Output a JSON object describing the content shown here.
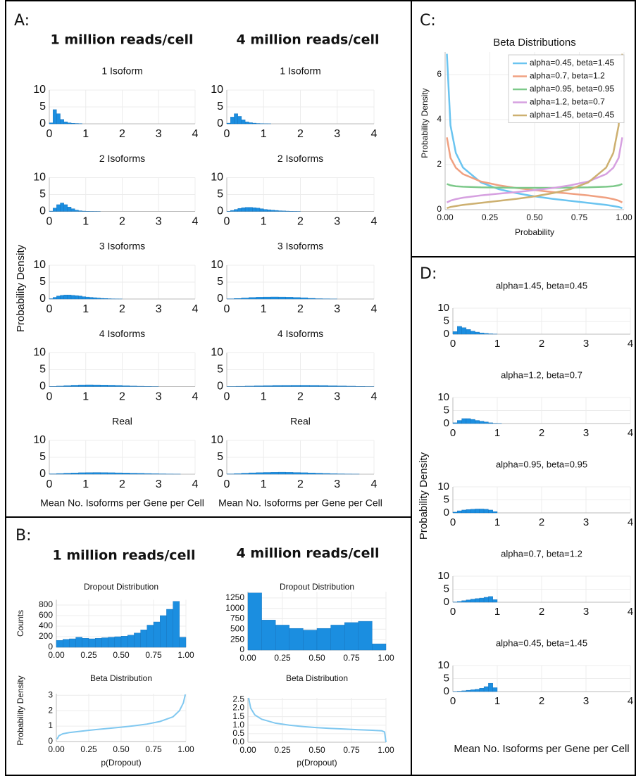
{
  "panels": {
    "A": {
      "label": "A:",
      "columns": [
        "1 million reads/cell",
        "4 million reads/cell"
      ],
      "ylabel": "Probability Density"
    },
    "B": {
      "label": "B:",
      "columns": [
        "1 million reads/cell",
        "4 million reads/cell"
      ]
    },
    "C": {
      "label": "C:"
    },
    "D": {
      "label": "D:",
      "ylabel": "Probability Density"
    }
  },
  "chart_data": [
    {
      "type": "histogram",
      "title": "1 Isoform",
      "color": "#1b8ee0",
      "grid": true,
      "xlim": [
        0,
        4
      ],
      "xticks": [
        0,
        1,
        2,
        3,
        4
      ],
      "ylim": [
        0,
        10
      ],
      "yticks": [
        0,
        5,
        10
      ],
      "bins": [
        0,
        0.1,
        0.2,
        0.3,
        0.4,
        0.5,
        0.6,
        0.7,
        0.8,
        0.9
      ],
      "values": [
        0.3,
        4.2,
        3,
        1.3,
        0.6,
        0.3,
        0.15,
        0.1,
        0.05
      ]
    },
    {
      "type": "histogram",
      "title": "1 Isoform",
      "color": "#1b8ee0",
      "grid": true,
      "xlim": [
        0,
        4
      ],
      "xticks": [
        0,
        1,
        2,
        3,
        4
      ],
      "ylim": [
        0,
        10
      ],
      "yticks": [
        0,
        5,
        10
      ],
      "bins": [
        0,
        0.1,
        0.2,
        0.3,
        0.4,
        0.5,
        0.6,
        0.7,
        0.8,
        0.9,
        1.0,
        1.1,
        1.2
      ],
      "values": [
        0.2,
        2,
        3,
        2.2,
        1.2,
        0.6,
        0.35,
        0.2,
        0.1,
        0.05,
        0.03,
        0.02
      ]
    },
    {
      "type": "histogram",
      "title": "2 Isoforms",
      "color": "#1b8ee0",
      "grid": true,
      "xlim": [
        0,
        4
      ],
      "xticks": [
        0,
        1,
        2,
        3,
        4
      ],
      "ylim": [
        0,
        10
      ],
      "yticks": [
        0,
        5,
        10
      ],
      "bins": [
        0,
        0.1,
        0.2,
        0.3,
        0.4,
        0.5,
        0.6,
        0.7,
        0.8,
        0.9,
        1.0,
        1.1,
        1.2,
        1.3,
        1.4
      ],
      "values": [
        0.1,
        1,
        2,
        2.5,
        2,
        1.3,
        0.8,
        0.4,
        0.2,
        0.1,
        0.05,
        0.03,
        0.02,
        0.01
      ]
    },
    {
      "type": "histogram",
      "title": "2 Isoforms",
      "color": "#1b8ee0",
      "grid": true,
      "xlim": [
        0,
        4
      ],
      "xticks": [
        0,
        1,
        2,
        3,
        4
      ],
      "ylim": [
        0,
        10
      ],
      "yticks": [
        0,
        5,
        10
      ],
      "bins": [
        0,
        0.1,
        0.2,
        0.3,
        0.4,
        0.5,
        0.6,
        0.7,
        0.8,
        0.9,
        1.0,
        1.1,
        1.2,
        1.3,
        1.4,
        1.5,
        1.6,
        1.7,
        1.8,
        1.9,
        2.0
      ],
      "values": [
        0.05,
        0.3,
        0.6,
        0.9,
        1.1,
        1.2,
        1.2,
        1.1,
        1,
        0.8,
        0.6,
        0.5,
        0.4,
        0.3,
        0.2,
        0.15,
        0.1,
        0.06,
        0.04,
        0.02
      ]
    },
    {
      "type": "histogram",
      "title": "3 Isoforms",
      "color": "#1b8ee0",
      "grid": true,
      "xlim": [
        0,
        4
      ],
      "xticks": [
        0,
        1,
        2,
        3,
        4
      ],
      "ylim": [
        0,
        10
      ],
      "yticks": [
        0,
        5,
        10
      ],
      "bins": [
        0,
        0.1,
        0.2,
        0.3,
        0.4,
        0.5,
        0.6,
        0.7,
        0.8,
        0.9,
        1.0,
        1.1,
        1.2,
        1.3,
        1.4,
        1.5,
        1.6,
        1.7,
        1.8,
        1.9,
        2.0
      ],
      "values": [
        0.1,
        0.5,
        0.9,
        1.1,
        1.2,
        1.2,
        1.1,
        1,
        0.9,
        0.7,
        0.6,
        0.5,
        0.4,
        0.3,
        0.2,
        0.15,
        0.1,
        0.05,
        0.03,
        0.02
      ]
    },
    {
      "type": "histogram",
      "title": "3 Isoforms",
      "color": "#1b8ee0",
      "grid": true,
      "xlim": [
        0,
        4
      ],
      "xticks": [
        0,
        1,
        2,
        3,
        4
      ],
      "ylim": [
        0,
        10
      ],
      "yticks": [
        0,
        5,
        10
      ],
      "bins": [
        0,
        0.2,
        0.4,
        0.6,
        0.8,
        1.0,
        1.2,
        1.4,
        1.6,
        1.8,
        2.0,
        2.2,
        2.4,
        2.6,
        2.8,
        3.0
      ],
      "values": [
        0.05,
        0.15,
        0.3,
        0.45,
        0.55,
        0.6,
        0.62,
        0.6,
        0.55,
        0.45,
        0.35,
        0.2,
        0.1,
        0.05,
        0.02
      ]
    },
    {
      "type": "histogram",
      "title": "4 Isoforms",
      "color": "#1b8ee0",
      "grid": true,
      "xlim": [
        0,
        4
      ],
      "xticks": [
        0,
        1,
        2,
        3,
        4
      ],
      "ylim": [
        0,
        10
      ],
      "yticks": [
        0,
        5,
        10
      ],
      "bins": [
        0,
        0.2,
        0.4,
        0.6,
        0.8,
        1.0,
        1.2,
        1.4,
        1.6,
        1.8,
        2.0,
        2.2,
        2.4,
        2.6,
        2.8,
        3.0
      ],
      "values": [
        0.05,
        0.15,
        0.3,
        0.42,
        0.5,
        0.52,
        0.5,
        0.47,
        0.42,
        0.35,
        0.27,
        0.18,
        0.1,
        0.05,
        0.02
      ]
    },
    {
      "type": "histogram",
      "title": "4 Isoforms",
      "color": "#1b8ee0",
      "grid": true,
      "xlim": [
        0,
        4
      ],
      "xticks": [
        0,
        1,
        2,
        3,
        4
      ],
      "ylim": [
        0,
        10
      ],
      "yticks": [
        0,
        5,
        10
      ],
      "bins": [
        0,
        0.25,
        0.5,
        0.75,
        1.0,
        1.25,
        1.5,
        1.75,
        2.0,
        2.25,
        2.5,
        2.75,
        3.0,
        3.25,
        3.5,
        3.75,
        4.0
      ],
      "values": [
        0.03,
        0.08,
        0.15,
        0.23,
        0.3,
        0.35,
        0.38,
        0.4,
        0.4,
        0.38,
        0.33,
        0.27,
        0.2,
        0.12,
        0.06,
        0.02
      ]
    },
    {
      "type": "histogram",
      "title": "Real",
      "xlabel": "Mean No. Isoforms per Gene per Cell",
      "color": "#1b8ee0",
      "grid": true,
      "xlim": [
        0,
        4
      ],
      "xticks": [
        0,
        1,
        2,
        3,
        4
      ],
      "ylim": [
        0,
        10
      ],
      "yticks": [
        0,
        5,
        10
      ],
      "bins": [
        0,
        0.2,
        0.4,
        0.6,
        0.8,
        1.0,
        1.2,
        1.4,
        1.6,
        1.8,
        2.0,
        2.2,
        2.4,
        2.6,
        2.8,
        3.0,
        3.2,
        3.4,
        3.6
      ],
      "values": [
        0.1,
        0.2,
        0.3,
        0.38,
        0.44,
        0.48,
        0.5,
        0.48,
        0.44,
        0.4,
        0.35,
        0.3,
        0.25,
        0.2,
        0.14,
        0.1,
        0.06,
        0.03
      ]
    },
    {
      "type": "histogram",
      "title": "Real",
      "xlabel": "Mean No. Isoforms per Gene per Cell",
      "color": "#1b8ee0",
      "grid": true,
      "xlim": [
        0,
        4
      ],
      "xticks": [
        0,
        1,
        2,
        3,
        4
      ],
      "ylim": [
        0,
        10
      ],
      "yticks": [
        0,
        5,
        10
      ],
      "bins": [
        0,
        0.2,
        0.4,
        0.6,
        0.8,
        1.0,
        1.2,
        1.4,
        1.6,
        1.8,
        2.0,
        2.2,
        2.4,
        2.6,
        2.8,
        3.0,
        3.2,
        3.4,
        3.6
      ],
      "values": [
        0.08,
        0.18,
        0.3,
        0.4,
        0.47,
        0.52,
        0.56,
        0.6,
        0.55,
        0.5,
        0.44,
        0.38,
        0.3,
        0.22,
        0.15,
        0.1,
        0.06,
        0.03
      ]
    },
    {
      "type": "histogram",
      "title": "Dropout Distribution",
      "ylabel": "Counts",
      "color": "#1b8ee0",
      "grid": true,
      "xlim": [
        0,
        1
      ],
      "xticks": [
        {
          "value": 0,
          "label": "0.00"
        },
        0.25,
        {
          "value": 0.5,
          "label": "0.50"
        },
        0.75,
        {
          "value": 1,
          "label": "1.00"
        }
      ],
      "ylim": [
        0,
        900
      ],
      "yticks": [
        0,
        200,
        400,
        600,
        800
      ],
      "bins": [
        0,
        0.05,
        0.1,
        0.15,
        0.2,
        0.25,
        0.3,
        0.35,
        0.4,
        0.45,
        0.5,
        0.55,
        0.6,
        0.65,
        0.7,
        0.75,
        0.8,
        0.85,
        0.9,
        0.95,
        1.0
      ],
      "values": [
        130,
        150,
        160,
        190,
        170,
        160,
        170,
        180,
        190,
        200,
        210,
        230,
        270,
        330,
        420,
        480,
        600,
        720,
        870,
        190
      ]
    },
    {
      "type": "histogram",
      "title": "Dropout Distribution",
      "color": "#1b8ee0",
      "grid": true,
      "xlim": [
        0,
        1
      ],
      "xticks": [
        {
          "value": 0,
          "label": "0.00"
        },
        0.25,
        {
          "value": 0.5,
          "label": "0.50"
        },
        0.75,
        {
          "value": 1,
          "label": "1.00"
        }
      ],
      "ylim": [
        0,
        1400
      ],
      "yticks": [
        0,
        250,
        500,
        750,
        1000,
        1250
      ],
      "bins": [
        0,
        0.1,
        0.2,
        0.3,
        0.4,
        0.5,
        0.6,
        0.7,
        0.8,
        0.9,
        1.0
      ],
      "values": [
        1370,
        720,
        600,
        520,
        480,
        520,
        600,
        660,
        690,
        150
      ]
    },
    {
      "type": "line",
      "title": "Beta Distribution",
      "xlabel": "p(Dropout)",
      "ylabel": "Probability Density",
      "color": "#80c8f0",
      "grid": true,
      "xlim": [
        0,
        1
      ],
      "xticks": [
        {
          "value": 0,
          "label": "0.00"
        },
        0.25,
        {
          "value": 0.5,
          "label": "0.50"
        },
        0.75,
        {
          "value": 1,
          "label": "1.00"
        }
      ],
      "ylim": [
        0,
        3.1
      ],
      "yticks": [
        0,
        1,
        2,
        3
      ],
      "x": [
        0.005,
        0.02,
        0.05,
        0.1,
        0.2,
        0.3,
        0.4,
        0.5,
        0.6,
        0.7,
        0.8,
        0.9,
        0.95,
        0.98,
        0.995
      ],
      "values": [
        0.15,
        0.38,
        0.5,
        0.58,
        0.68,
        0.77,
        0.85,
        0.93,
        1.02,
        1.13,
        1.3,
        1.6,
        2,
        2.5,
        3.05
      ]
    },
    {
      "type": "line",
      "title": "Beta Distribution",
      "xlabel": "p(Dropout)",
      "color": "#80c8f0",
      "grid": true,
      "xlim": [
        0,
        1
      ],
      "xticks": [
        {
          "value": 0,
          "label": "0.00"
        },
        0.25,
        {
          "value": 0.5,
          "label": "0.50"
        },
        0.75,
        {
          "value": 1,
          "label": "1.00"
        }
      ],
      "ylim": [
        0,
        2.6
      ],
      "yticks": [
        {
          "value": 0,
          "label": "0.0"
        },
        0.5,
        {
          "value": 1,
          "label": "1.0"
        },
        1.5,
        {
          "value": 2,
          "label": "2.0"
        },
        2.5
      ],
      "x": [
        0.005,
        0.02,
        0.05,
        0.1,
        0.2,
        0.3,
        0.4,
        0.5,
        0.6,
        0.7,
        0.8,
        0.9,
        0.97,
        0.99,
        1.0
      ],
      "values": [
        2.6,
        2.0,
        1.6,
        1.35,
        1.12,
        1.0,
        0.92,
        0.86,
        0.81,
        0.77,
        0.73,
        0.7,
        0.67,
        0.6,
        0.0
      ]
    },
    {
      "type": "line",
      "title": "Beta Distributions",
      "xlabel": "Probability",
      "ylabel": "Probability Density",
      "grid": true,
      "legend": "upper right",
      "xlim": [
        0,
        1
      ],
      "xticks": [
        {
          "value": 0,
          "label": "0.00"
        },
        0.25,
        {
          "value": 0.5,
          "label": "0.50"
        },
        0.75,
        {
          "value": 1,
          "label": "1.00"
        }
      ],
      "ylim": [
        0,
        7
      ],
      "yticks": [
        0,
        2,
        4,
        6
      ],
      "x": [
        0.01,
        0.03,
        0.06,
        0.1,
        0.2,
        0.3,
        0.4,
        0.5,
        0.6,
        0.7,
        0.8,
        0.9,
        0.94,
        0.97,
        0.99
      ],
      "series": [
        {
          "name": "alpha=0.45, beta=1.45",
          "color": "#6ac4f0",
          "values": [
            6.92,
            3.74,
            2.52,
            1.87,
            1.21,
            0.91,
            0.73,
            0.59,
            0.48,
            0.39,
            0.3,
            0.21,
            0.16,
            0.12,
            0.07
          ]
        },
        {
          "name": "alpha=0.7, beta=1.2",
          "color": "#f0a080",
          "values": [
            3.21,
            2.3,
            1.86,
            1.58,
            1.25,
            1.08,
            0.96,
            0.87,
            0.78,
            0.71,
            0.63,
            0.53,
            0.47,
            0.4,
            0.32
          ]
        },
        {
          "name": "alpha=0.95, beta=0.95",
          "color": "#7dc98a",
          "values": [
            1.14,
            1.08,
            1.04,
            1.02,
            0.99,
            0.98,
            0.97,
            0.97,
            0.97,
            0.98,
            0.99,
            1.02,
            1.04,
            1.08,
            1.14
          ]
        },
        {
          "name": "alpha=1.2, beta=0.7",
          "color": "#d6a0e0",
          "values": [
            0.32,
            0.4,
            0.47,
            0.53,
            0.63,
            0.71,
            0.78,
            0.87,
            0.96,
            1.08,
            1.25,
            1.58,
            1.86,
            2.3,
            3.21
          ]
        },
        {
          "name": "alpha=1.45, beta=0.45",
          "color": "#cdb070",
          "values": [
            0.07,
            0.12,
            0.16,
            0.21,
            0.3,
            0.39,
            0.48,
            0.59,
            0.73,
            0.91,
            1.21,
            1.87,
            2.52,
            3.74,
            6.92
          ]
        }
      ]
    },
    {
      "type": "histogram",
      "title": "alpha=1.45, beta=0.45",
      "color": "#1b8ee0",
      "grid": true,
      "xlim": [
        0,
        4
      ],
      "xticks": [
        0,
        1,
        2,
        3,
        4
      ],
      "ylim": [
        0,
        10
      ],
      "yticks": [
        0,
        5,
        10
      ],
      "bins": [
        0,
        0.1,
        0.2,
        0.3,
        0.4,
        0.5,
        0.6,
        0.7,
        0.8,
        0.9,
        1.0
      ],
      "values": [
        1,
        3,
        2.5,
        1.8,
        1.2,
        0.8,
        0.5,
        0.3,
        0.15,
        0.05
      ]
    },
    {
      "type": "histogram",
      "title": "alpha=1.2, beta=0.7",
      "color": "#1b8ee0",
      "grid": true,
      "xlim": [
        0,
        4
      ],
      "xticks": [
        0,
        1,
        2,
        3,
        4
      ],
      "ylim": [
        0,
        10
      ],
      "yticks": [
        0,
        5,
        10
      ],
      "bins": [
        0,
        0.1,
        0.2,
        0.3,
        0.4,
        0.5,
        0.6,
        0.7,
        0.8,
        0.9,
        1.0,
        1.1
      ],
      "values": [
        0.3,
        1.2,
        1.9,
        1.9,
        1.6,
        1.2,
        0.9,
        0.6,
        0.3,
        0.1,
        0.05
      ]
    },
    {
      "type": "histogram",
      "title": "alpha=0.95, beta=0.95",
      "color": "#1b8ee0",
      "grid": true,
      "xlim": [
        0,
        4
      ],
      "xticks": [
        0,
        1,
        2,
        3,
        4
      ],
      "ylim": [
        0,
        10
      ],
      "yticks": [
        0,
        5,
        10
      ],
      "bins": [
        0,
        0.1,
        0.2,
        0.3,
        0.4,
        0.5,
        0.6,
        0.7,
        0.8,
        0.9,
        1.0
      ],
      "values": [
        0.3,
        0.8,
        1.1,
        1.3,
        1.4,
        1.5,
        1.5,
        1.4,
        1.1,
        0.5
      ]
    },
    {
      "type": "histogram",
      "title": "alpha=0.7, beta=1.2",
      "color": "#1b8ee0",
      "grid": true,
      "xlim": [
        0,
        4
      ],
      "xticks": [
        0,
        1,
        2,
        3,
        4
      ],
      "ylim": [
        0,
        10
      ],
      "yticks": [
        0,
        5,
        10
      ],
      "bins": [
        0,
        0.1,
        0.2,
        0.3,
        0.4,
        0.5,
        0.6,
        0.7,
        0.8,
        0.9,
        1.0
      ],
      "values": [
        0.1,
        0.3,
        0.6,
        0.9,
        1.2,
        1.4,
        1.6,
        1.9,
        2.2,
        1.0
      ]
    },
    {
      "type": "histogram",
      "title": "alpha=0.45, beta=1.45",
      "xlabel": "Mean No. Isoforms per Gene per Cell",
      "color": "#1b8ee0",
      "grid": true,
      "xlim": [
        0,
        4
      ],
      "xticks": [
        0,
        1,
        2,
        3,
        4
      ],
      "ylim": [
        0,
        10
      ],
      "yticks": [
        0,
        5,
        10
      ],
      "bins": [
        0,
        0.1,
        0.2,
        0.3,
        0.4,
        0.5,
        0.6,
        0.7,
        0.8,
        0.9,
        1.0
      ],
      "values": [
        0.05,
        0.15,
        0.3,
        0.5,
        0.7,
        0.9,
        1.3,
        1.9,
        3.2,
        1.5
      ]
    }
  ]
}
